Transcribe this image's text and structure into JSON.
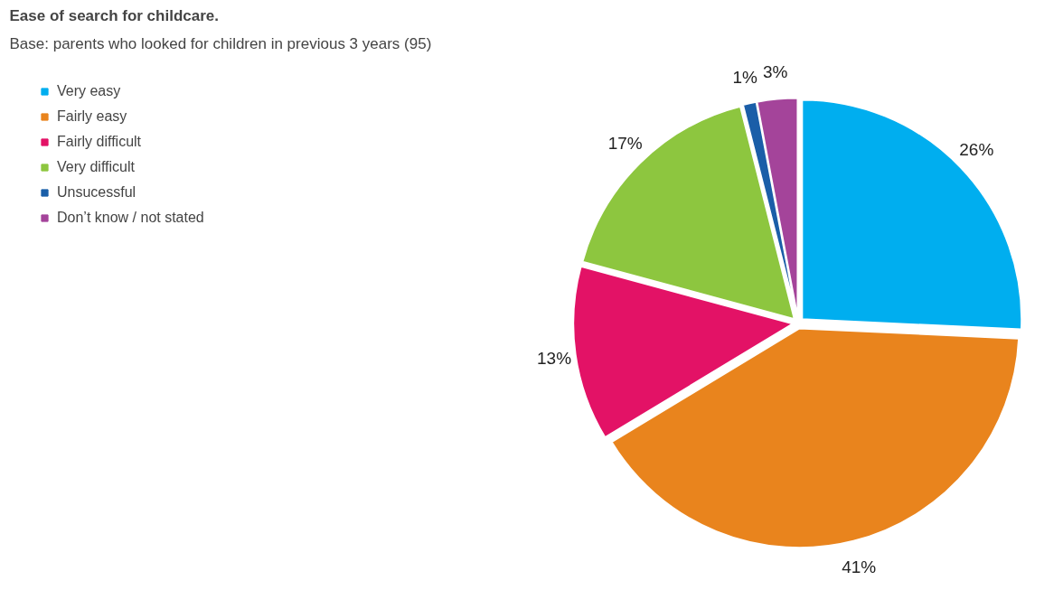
{
  "chart_data": {
    "type": "pie",
    "title": "Ease of search for childcare.",
    "subtitle": "Base: parents who looked for children in previous 3 years (95)",
    "categories": [
      "Very easy",
      "Fairly easy",
      "Fairly difficult",
      "Very difficult",
      "Unsucessful",
      "Don’t know / not stated"
    ],
    "values": [
      26,
      41,
      13,
      17,
      1,
      3
    ],
    "colors": [
      "#00aeef",
      "#e9841d",
      "#e31266",
      "#8dc63f",
      "#1a5ea8",
      "#a4449a"
    ],
    "value_labels": [
      "26%",
      "41%",
      "13%",
      "17%",
      "1%",
      "3%"
    ],
    "legend": "top left"
  }
}
